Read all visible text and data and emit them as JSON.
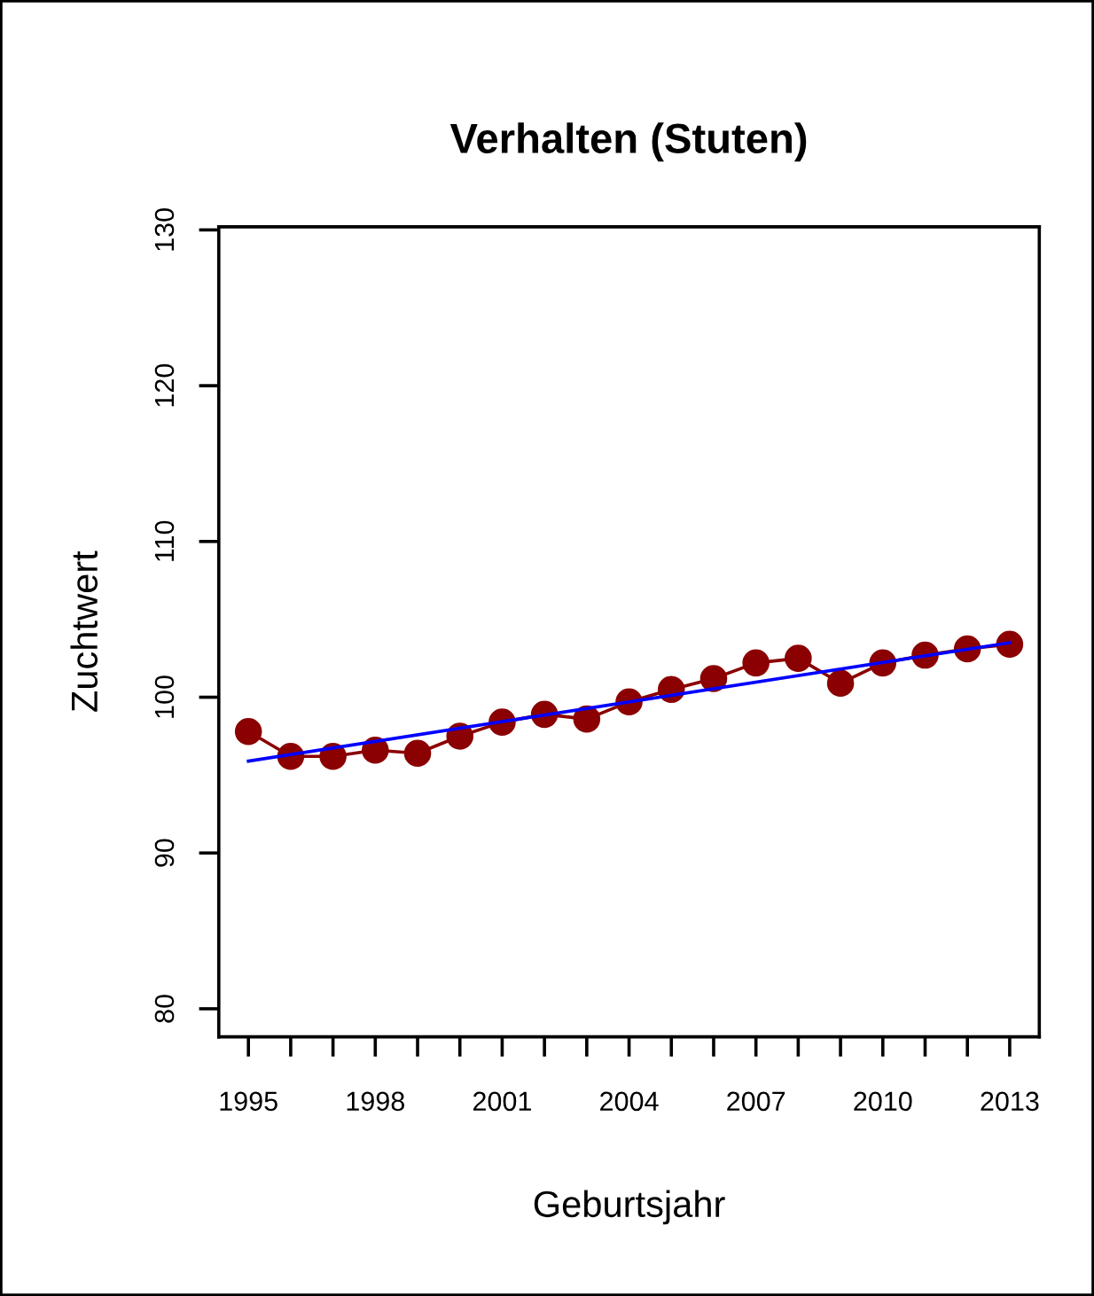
{
  "chart_data": {
    "type": "line",
    "title": "Verhalten (Stuten)",
    "xlabel": "Geburtsjahr",
    "ylabel": "Zuchtwert",
    "x": [
      1995,
      1996,
      1997,
      1998,
      1999,
      2000,
      2001,
      2002,
      2003,
      2004,
      2005,
      2006,
      2007,
      2008,
      2009,
      2010,
      2011,
      2012,
      2013
    ],
    "series": [
      {
        "color": "#8b0000",
        "marker": "circle",
        "values": [
          97.8,
          96.2,
          96.2,
          96.6,
          96.4,
          97.5,
          98.4,
          98.9,
          98.6,
          99.7,
          100.5,
          101.2,
          102.2,
          102.5,
          100.9,
          102.2,
          102.7,
          103.1,
          103.4
        ]
      },
      {
        "type": "line",
        "color": "#0000ff",
        "marker": "none",
        "x": [
          1995,
          2013
        ],
        "values": [
          95.9,
          103.5
        ]
      }
    ],
    "xlim": [
      1994.3,
      2013.7
    ],
    "xticks": [
      1995,
      {
        "value": 1996,
        "label": null
      },
      {
        "value": 1997,
        "label": null
      },
      1998,
      {
        "value": 1999,
        "label": null
      },
      {
        "value": 2000,
        "label": null
      },
      2001,
      {
        "value": 2002,
        "label": null
      },
      {
        "value": 2003,
        "label": null
      },
      2004,
      {
        "value": 2005,
        "label": null
      },
      {
        "value": 2006,
        "label": null
      },
      2007,
      {
        "value": 2008,
        "label": null
      },
      {
        "value": 2009,
        "label": null
      },
      2010,
      {
        "value": 2011,
        "label": null
      },
      {
        "value": 2012,
        "label": null
      },
      2013
    ],
    "ylim": [
      78.2,
      130.2
    ],
    "yticks": [
      80,
      90,
      100,
      110,
      120,
      130
    ],
    "grid": false,
    "legend": false,
    "line_style": "solid"
  }
}
